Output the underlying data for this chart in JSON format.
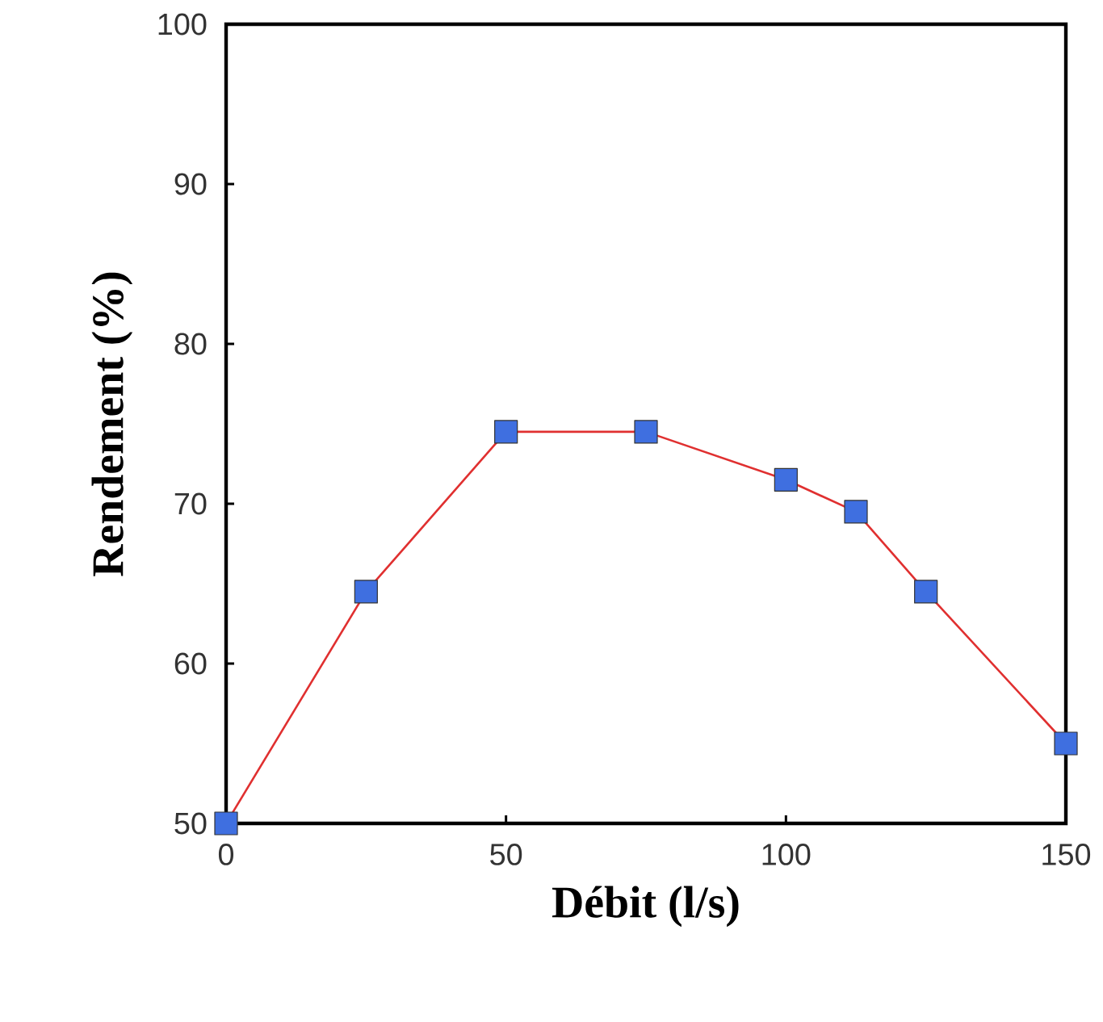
{
  "chart_data": {
    "type": "line",
    "xlabel": "Débit (l/s)",
    "ylabel": "Rendement (%)",
    "x": [
      0,
      25,
      50,
      75,
      100,
      112.5,
      125,
      150
    ],
    "series": [
      {
        "color": "#e03030",
        "values": [
          50,
          64.5,
          74.5,
          74.5,
          71.5,
          69.5,
          64.5,
          55
        ]
      }
    ],
    "marker": "square",
    "line_style": "solid",
    "grid": false,
    "xlim": [
      0,
      150
    ],
    "ylim": [
      50,
      100
    ],
    "xticks": [
      0,
      50,
      100,
      150
    ],
    "yticks": [
      50,
      60,
      70,
      80,
      90,
      100
    ]
  }
}
